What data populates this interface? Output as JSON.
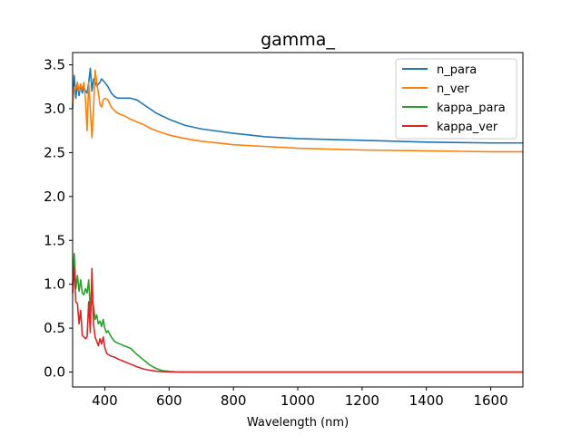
{
  "chart_data": {
    "type": "line",
    "title": "gamma_",
    "xlabel": "Wavelength (nm)",
    "ylabel": "",
    "xlim": [
      300,
      1700
    ],
    "ylim": [
      -0.17,
      3.64
    ],
    "xticks": [
      400,
      600,
      800,
      1000,
      1200,
      1400,
      1600
    ],
    "yticks": [
      0.0,
      0.5,
      1.0,
      1.5,
      2.0,
      2.5,
      3.0,
      3.5
    ],
    "grid": false,
    "legend_position": "upper right",
    "series": [
      {
        "name": "n_para",
        "color": "#1f77b4",
        "x": [
          300,
          305,
          310,
          315,
          320,
          325,
          330,
          335,
          340,
          345,
          350,
          355,
          360,
          365,
          370,
          375,
          380,
          385,
          390,
          395,
          400,
          410,
          420,
          430,
          440,
          460,
          480,
          500,
          520,
          540,
          560,
          600,
          650,
          700,
          800,
          900,
          1000,
          1200,
          1400,
          1600,
          1700
        ],
        "y": [
          3.0,
          3.38,
          3.12,
          3.3,
          3.15,
          3.28,
          3.18,
          3.25,
          3.2,
          3.18,
          3.3,
          3.46,
          3.2,
          3.34,
          3.3,
          3.26,
          3.28,
          3.3,
          3.34,
          3.32,
          3.3,
          3.25,
          3.18,
          3.14,
          3.12,
          3.12,
          3.12,
          3.1,
          3.05,
          3.0,
          2.95,
          2.88,
          2.81,
          2.77,
          2.72,
          2.68,
          2.66,
          2.64,
          2.62,
          2.61,
          2.61
        ]
      },
      {
        "name": "n_ver",
        "color": "#ff7f0e",
        "x": [
          300,
          305,
          310,
          315,
          320,
          325,
          330,
          335,
          340,
          345,
          350,
          355,
          360,
          365,
          370,
          375,
          380,
          385,
          390,
          395,
          400,
          410,
          420,
          430,
          440,
          460,
          480,
          500,
          520,
          540,
          560,
          600,
          650,
          700,
          800,
          900,
          1000,
          1200,
          1400,
          1600,
          1700
        ],
        "y": [
          3.05,
          3.25,
          3.22,
          3.3,
          3.2,
          3.28,
          3.22,
          3.3,
          3.1,
          2.75,
          3.3,
          3.0,
          2.67,
          3.0,
          3.44,
          3.3,
          3.18,
          3.05,
          3.02,
          3.1,
          3.12,
          3.1,
          3.02,
          2.98,
          2.95,
          2.92,
          2.88,
          2.85,
          2.82,
          2.78,
          2.75,
          2.7,
          2.66,
          2.63,
          2.59,
          2.57,
          2.55,
          2.53,
          2.52,
          2.51,
          2.51
        ]
      },
      {
        "name": "kappa_para",
        "color": "#2ca02c",
        "x": [
          300,
          305,
          310,
          315,
          320,
          325,
          330,
          335,
          340,
          345,
          350,
          355,
          360,
          365,
          370,
          375,
          380,
          385,
          390,
          395,
          400,
          405,
          410,
          420,
          430,
          440,
          460,
          480,
          500,
          520,
          540,
          560,
          580,
          600,
          620,
          650,
          700,
          800,
          1000,
          1200,
          1400,
          1600,
          1700
        ],
        "y": [
          1.0,
          1.35,
          0.95,
          1.1,
          0.92,
          1.05,
          0.9,
          0.88,
          0.95,
          0.9,
          1.05,
          0.7,
          0.82,
          0.75,
          0.6,
          0.65,
          0.55,
          0.58,
          0.52,
          0.6,
          0.5,
          0.45,
          0.47,
          0.4,
          0.35,
          0.33,
          0.3,
          0.27,
          0.2,
          0.14,
          0.08,
          0.04,
          0.015,
          0.008,
          0.003,
          0.001,
          0.0,
          0.0,
          0.0,
          0.0,
          0.0,
          0.0,
          0.0
        ]
      },
      {
        "name": "kappa_ver",
        "color": "#d62728",
        "x": [
          300,
          305,
          310,
          315,
          320,
          325,
          330,
          335,
          340,
          345,
          350,
          355,
          360,
          365,
          370,
          375,
          380,
          385,
          390,
          395,
          400,
          405,
          410,
          420,
          430,
          440,
          460,
          480,
          500,
          520,
          540,
          560,
          580,
          600,
          620,
          650,
          700,
          800,
          1000,
          1200,
          1400,
          1600,
          1700
        ],
        "y": [
          0.9,
          1.2,
          0.8,
          0.78,
          0.55,
          0.7,
          0.42,
          0.4,
          0.38,
          0.4,
          0.8,
          0.45,
          1.18,
          0.55,
          0.4,
          0.35,
          0.3,
          0.38,
          0.32,
          0.4,
          0.28,
          0.22,
          0.2,
          0.18,
          0.17,
          0.15,
          0.12,
          0.09,
          0.06,
          0.035,
          0.02,
          0.01,
          0.005,
          0.002,
          0.0,
          0.0,
          0.0,
          0.0,
          0.0,
          0.0,
          0.0,
          0.0,
          0.0
        ]
      }
    ]
  }
}
